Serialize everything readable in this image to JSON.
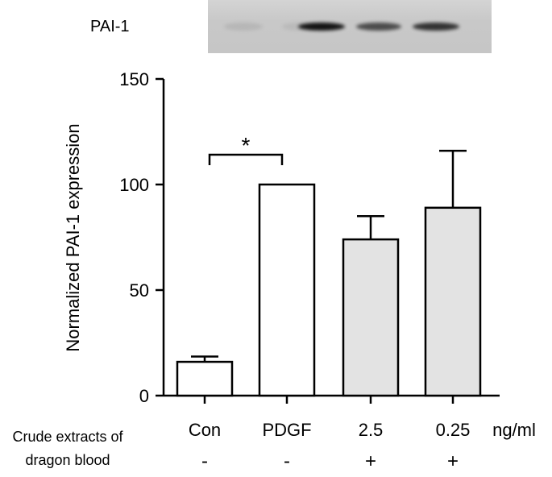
{
  "blot": {
    "label": "PAI-1",
    "band_intensity": [
      0.15,
      0.12,
      0.95,
      0.75,
      0.85
    ]
  },
  "chart_data": {
    "type": "bar",
    "categories": [
      "Con",
      "PDGF",
      "2.5",
      "0.25"
    ],
    "values": [
      16,
      100,
      74,
      89
    ],
    "errors": [
      2.5,
      0,
      11,
      27
    ],
    "bar_fill": [
      "#ffffff",
      "#ffffff",
      "#e3e3e3",
      "#e3e3e3"
    ],
    "ylabel": "Normalized PAI-1 expression",
    "ylim": [
      0,
      150
    ],
    "yticks": [
      0,
      50,
      100,
      150
    ],
    "unit_label": "ng/ml",
    "significance": {
      "from": "Con",
      "to": "PDGF",
      "label": "*"
    },
    "treatment": {
      "label_line1": "Crude extracts of",
      "label_line2": "dragon blood",
      "signs": [
        "-",
        "-",
        "+",
        "+"
      ]
    },
    "grid": false
  }
}
